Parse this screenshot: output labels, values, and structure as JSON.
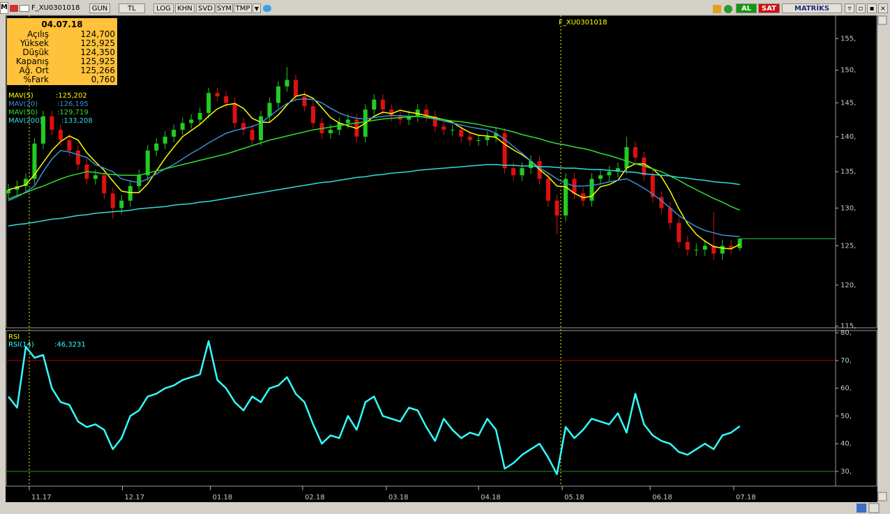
{
  "toolbar": {
    "logo": "M",
    "symbol": "F_XU0301018",
    "buttons": [
      "GUN",
      "TL",
      "LOG",
      "KHN",
      "SVD",
      "SYM",
      "TMP"
    ],
    "buy": "AL",
    "sell": "SAT",
    "brand": "MATRİKS"
  },
  "info_box": {
    "date": "04.07.18",
    "rows": [
      [
        "Açılış",
        "124,700"
      ],
      [
        "Yüksek",
        "125,925"
      ],
      [
        "Düşük",
        "124,350"
      ],
      [
        "Kapanış",
        "125,925"
      ],
      [
        "Ağ. Ort",
        "125,266"
      ],
      [
        "%Fark",
        "0,760"
      ]
    ]
  },
  "chart_data": [
    {
      "type": "candlestick",
      "annotation": "F_XU0301018",
      "log": true,
      "up_color": "#22cc22",
      "down_color": "#dd1111",
      "last_price_color": "#2ecc40",
      "xlim": [
        0,
        95
      ],
      "ylim": [
        114.8,
        158.8
      ],
      "yticks": [
        {
          "value": 115,
          "label": "115,"
        },
        {
          "value": 120,
          "label": "120,"
        },
        {
          "value": 125,
          "label": "125,"
        },
        {
          "value": 130,
          "label": "130,"
        },
        {
          "value": 135,
          "label": "135,"
        },
        {
          "value": 140,
          "label": "140,"
        },
        {
          "value": 145,
          "label": "145,"
        },
        {
          "value": 150,
          "label": "150,"
        },
        {
          "value": 155,
          "label": "155,"
        }
      ],
      "open": [
        132,
        132.5,
        133,
        134,
        139,
        143,
        141,
        139.5,
        138,
        136,
        134,
        134.5,
        132,
        130,
        131,
        133,
        134.5,
        138,
        139,
        140,
        141,
        142,
        142.5,
        143.5,
        146.5,
        146,
        145,
        142,
        141,
        139.5,
        143,
        145,
        147.5,
        148.5,
        146,
        144.5,
        142,
        140.5,
        141,
        142,
        142.5,
        140,
        144,
        145.5,
        144,
        143,
        142.5,
        143,
        144,
        143,
        141.5,
        141,
        141,
        140,
        139.5,
        139.5,
        140,
        140.5,
        135.5,
        134.5,
        135.5,
        136.5,
        134,
        131,
        129,
        134,
        132,
        131,
        134,
        134.5,
        135,
        135.5,
        138.5,
        137,
        134.5,
        131.5,
        130,
        128,
        125.5,
        124.5,
        124.5,
        125,
        124,
        125,
        124.7
      ],
      "high": [
        133.3,
        133.8,
        134.8,
        139.8,
        143.8,
        143.8,
        141.8,
        140.3,
        138.8,
        136.8,
        135.3,
        135.3,
        132.8,
        131.8,
        133.8,
        135.3,
        138.8,
        139.8,
        140.8,
        141.8,
        142.8,
        143.3,
        144.3,
        147.3,
        147.3,
        146.8,
        145.8,
        142.8,
        141.8,
        143.8,
        145.8,
        148.3,
        150.5,
        149.3,
        146.8,
        145.3,
        142.8,
        141.8,
        142.8,
        143.3,
        143.3,
        144.8,
        146.3,
        146.3,
        144.8,
        143.8,
        143.8,
        144.8,
        144.8,
        143.8,
        142.3,
        141.8,
        141.8,
        140.8,
        140.3,
        140.8,
        141.3,
        141.3,
        136.3,
        136.3,
        137.3,
        137.3,
        134.8,
        131.8,
        134.8,
        134.8,
        132.8,
        134.8,
        135.3,
        135.8,
        136.3,
        140,
        139.3,
        137.8,
        135.3,
        132.3,
        130.8,
        128.8,
        126.3,
        125.3,
        125.8,
        129.5,
        125.8,
        125.8,
        125.925
      ],
      "low": [
        131.2,
        131.7,
        132.2,
        133.2,
        138.2,
        140.2,
        138.7,
        137.2,
        135.2,
        133.2,
        133.2,
        131.2,
        128.5,
        129.2,
        130.2,
        132.2,
        133.7,
        137.2,
        138.2,
        139.2,
        140.2,
        141.2,
        141.7,
        142.7,
        145.2,
        144.2,
        141.2,
        140.2,
        138.7,
        138.7,
        142.2,
        144.2,
        146.7,
        145.2,
        143.7,
        141.2,
        139.7,
        139.7,
        140.2,
        141.2,
        139.2,
        139.2,
        143.2,
        143.2,
        142.2,
        141.7,
        141.7,
        142.2,
        142.2,
        140.7,
        140.2,
        140.2,
        139.2,
        138.7,
        138.7,
        138.7,
        139.2,
        134.7,
        133.7,
        133.7,
        134.7,
        133.2,
        130.2,
        126.5,
        128.2,
        131.2,
        130.2,
        130.2,
        133.2,
        133.7,
        134.2,
        134.7,
        136.2,
        133.7,
        130.7,
        129.2,
        127.2,
        124.7,
        123.7,
        123.7,
        123.7,
        123.2,
        123.2,
        123.9,
        124.35
      ],
      "close": [
        132.5,
        133,
        134,
        139,
        143,
        141,
        139.5,
        138,
        136,
        134,
        134.5,
        132,
        130,
        131,
        133,
        134.5,
        138,
        139,
        140,
        141,
        142,
        142.5,
        143.5,
        146.5,
        146,
        145,
        142,
        141,
        139.5,
        143,
        145,
        147.5,
        148.5,
        146,
        144.5,
        142,
        140.5,
        141,
        142,
        142.5,
        140,
        144,
        145.5,
        144,
        143,
        142.5,
        143,
        144,
        143,
        141.5,
        141,
        141,
        140,
        139.5,
        139.5,
        140,
        140.5,
        135.5,
        134.5,
        135.5,
        136.5,
        134,
        131,
        129,
        134,
        132,
        131,
        134,
        134.5,
        135,
        135.5,
        138.5,
        137,
        134.5,
        131.5,
        130,
        128,
        125.5,
        124.5,
        124.5,
        125,
        124,
        125,
        124.7,
        125.925
      ],
      "series": [
        {
          "name": "MAV(5)",
          "last_label": ":125,202",
          "color": "#ffff00",
          "values": [
            132.5,
            132.8,
            133.2,
            134.6,
            136.3,
            138,
            139.3,
            140.1,
            139.5,
            137.7,
            136.4,
            135.2,
            133.7,
            132.3,
            132.1,
            132.1,
            133.3,
            135.1,
            136.9,
            138.5,
            140,
            140.9,
            141.8,
            143,
            144.1,
            144.7,
            144.9,
            144.2,
            142.7,
            142.1,
            142.1,
            143.2,
            144.7,
            146,
            146.3,
            145.7,
            144.3,
            142.8,
            142,
            141.6,
            141.2,
            142,
            143,
            143.6,
            143.4,
            143.9,
            143.6,
            143.4,
            143.1,
            142.8,
            142.5,
            142.1,
            141.3,
            140.6,
            140.2,
            140.1,
            139.9,
            138.9,
            138.1,
            137.4,
            136.5,
            135.3,
            134.3,
            133,
            132.9,
            132,
            131.4,
            131.6,
            132.9,
            133.2,
            133.8,
            135.5,
            136.1,
            136.1,
            135.4,
            134.3,
            132.3,
            129.9,
            127.9,
            126.5,
            125.6,
            124.9,
            124.7,
            124.6,
            125.202
          ]
        },
        {
          "name": "MAV(20)",
          "last_label": ":126,195",
          "color": "#3a8fd8",
          "values": [
            131,
            131.5,
            132.2,
            133,
            135,
            136.8,
            138,
            137.8,
            137.4,
            137,
            136,
            135.5,
            135,
            134,
            133.7,
            133.5,
            134,
            134.7,
            135.4,
            136,
            136.8,
            137.6,
            138.3,
            139.1,
            139.8,
            140.5,
            140.9,
            141.2,
            141.5,
            142,
            143,
            144,
            144.9,
            145.5,
            145.6,
            145.5,
            145,
            144.2,
            143.5,
            143,
            142.7,
            142.6,
            142.8,
            143,
            143.1,
            143.1,
            143,
            143,
            142.8,
            142.6,
            142.3,
            142,
            141.7,
            141.4,
            141.2,
            141,
            140.5,
            139.6,
            138.6,
            137.6,
            136.5,
            135.5,
            134.8,
            134,
            133.4,
            133,
            133,
            133.1,
            133.3,
            133.6,
            133.8,
            134,
            133.4,
            132.7,
            131.9,
            131,
            130,
            129,
            128.2,
            127.5,
            127,
            126.7,
            126.4,
            126.3,
            126.195
          ]
        },
        {
          "name": "MAV(50)",
          "last_label": ":129,719",
          "color": "#33dd33",
          "values": [
            131.2,
            131.7,
            132.1,
            132.6,
            133,
            133.5,
            134,
            134.4,
            134.7,
            135,
            134.9,
            134.7,
            134.6,
            134.5,
            134.5,
            134.5,
            134.8,
            135.1,
            135.4,
            135.7,
            136,
            136.3,
            136.6,
            136.9,
            137.2,
            137.5,
            137.9,
            138.3,
            138.7,
            139.1,
            139.5,
            139.8,
            140.1,
            140.4,
            140.7,
            141,
            141.2,
            141.4,
            141.6,
            141.8,
            142,
            142.2,
            142.4,
            142.6,
            142.7,
            142.8,
            142.9,
            143,
            142.9,
            142.7,
            142.5,
            142.3,
            142.2,
            142,
            141.8,
            141.5,
            141.3,
            141,
            140.7,
            140.3,
            140,
            139.7,
            139.3,
            139,
            138.8,
            138.5,
            138.3,
            138,
            137.6,
            137.3,
            136.9,
            136.5,
            136.1,
            135.8,
            135.4,
            135,
            134.4,
            133.8,
            133.1,
            132.5,
            131.9,
            131.3,
            130.8,
            130.2,
            129.719
          ]
        },
        {
          "name": "MAV(200)",
          "last_label": ":133,208",
          "color": "#33dddd",
          "values": [
            127.6,
            127.8,
            127.9,
            128.1,
            128.3,
            128.5,
            128.6,
            128.8,
            129,
            129.1,
            129.3,
            129.4,
            129.5,
            129.6,
            129.7,
            129.9,
            130,
            130.1,
            130.2,
            130.4,
            130.5,
            130.6,
            130.8,
            130.9,
            131.1,
            131.3,
            131.5,
            131.7,
            131.9,
            132.1,
            132.3,
            132.5,
            132.7,
            132.9,
            133.1,
            133.3,
            133.5,
            133.6,
            133.8,
            134,
            134.2,
            134.3,
            134.5,
            134.6,
            134.8,
            134.9,
            135,
            135.2,
            135.3,
            135.4,
            135.5,
            135.6,
            135.7,
            135.8,
            135.9,
            136,
            136,
            135.9,
            135.9,
            135.8,
            135.8,
            135.7,
            135.7,
            135.6,
            135.5,
            135.5,
            135.4,
            135.3,
            135.3,
            135.2,
            135.1,
            135,
            134.9,
            134.7,
            134.6,
            134.5,
            134.4,
            134.2,
            134.1,
            133.9,
            133.8,
            133.6,
            133.5,
            133.4,
            133.208
          ]
        }
      ]
    },
    {
      "type": "line",
      "title": "RSI",
      "title_color": "#ffff00",
      "xlim": [
        0,
        95
      ],
      "ylim": [
        24.7,
        80.8
      ],
      "xticks": [
        {
          "value": 2.4,
          "label": "11.17"
        },
        {
          "value": 13.1,
          "label": "12.17"
        },
        {
          "value": 23.2,
          "label": "01.18"
        },
        {
          "value": 33.8,
          "label": "02.18"
        },
        {
          "value": 43.4,
          "label": "03.18"
        },
        {
          "value": 54,
          "label": "04.18"
        },
        {
          "value": 63.6,
          "label": "05.18"
        },
        {
          "value": 73.7,
          "label": "06.18"
        },
        {
          "value": 83.3,
          "label": "07.18"
        }
      ],
      "yticks": [
        {
          "value": 30,
          "label": "30,"
        },
        {
          "value": 40,
          "label": "40,"
        },
        {
          "value": 50,
          "label": "50,"
        },
        {
          "value": 60,
          "label": "60,"
        },
        {
          "value": 70,
          "label": "70,"
        },
        {
          "value": 80,
          "label": "80,"
        }
      ],
      "levels": [
        {
          "value": 70,
          "color": "#b00000"
        },
        {
          "value": 30,
          "color": "#1f8f1f"
        }
      ],
      "series": [
        {
          "name": "RSI(14)",
          "last_label": ":46,3231",
          "color": "#33ffff",
          "values": [
            57,
            53,
            75,
            71,
            72,
            60,
            55,
            54,
            48,
            46,
            47,
            45,
            38,
            42,
            50,
            52,
            57,
            58,
            60,
            61,
            63,
            64,
            65,
            77,
            63,
            60,
            55,
            52,
            57,
            55,
            60,
            61,
            64,
            58,
            55,
            47,
            40,
            43,
            42,
            50,
            45,
            55,
            57,
            50,
            49,
            48,
            53,
            52,
            46,
            41,
            49,
            45,
            42,
            44,
            43,
            49,
            45,
            31,
            33,
            36,
            38,
            40,
            35,
            29,
            46,
            42,
            45,
            49,
            48,
            47,
            51,
            44,
            58,
            47,
            43,
            41,
            40,
            37,
            36,
            38,
            40,
            38,
            43,
            44,
            46.3231
          ]
        }
      ]
    }
  ]
}
